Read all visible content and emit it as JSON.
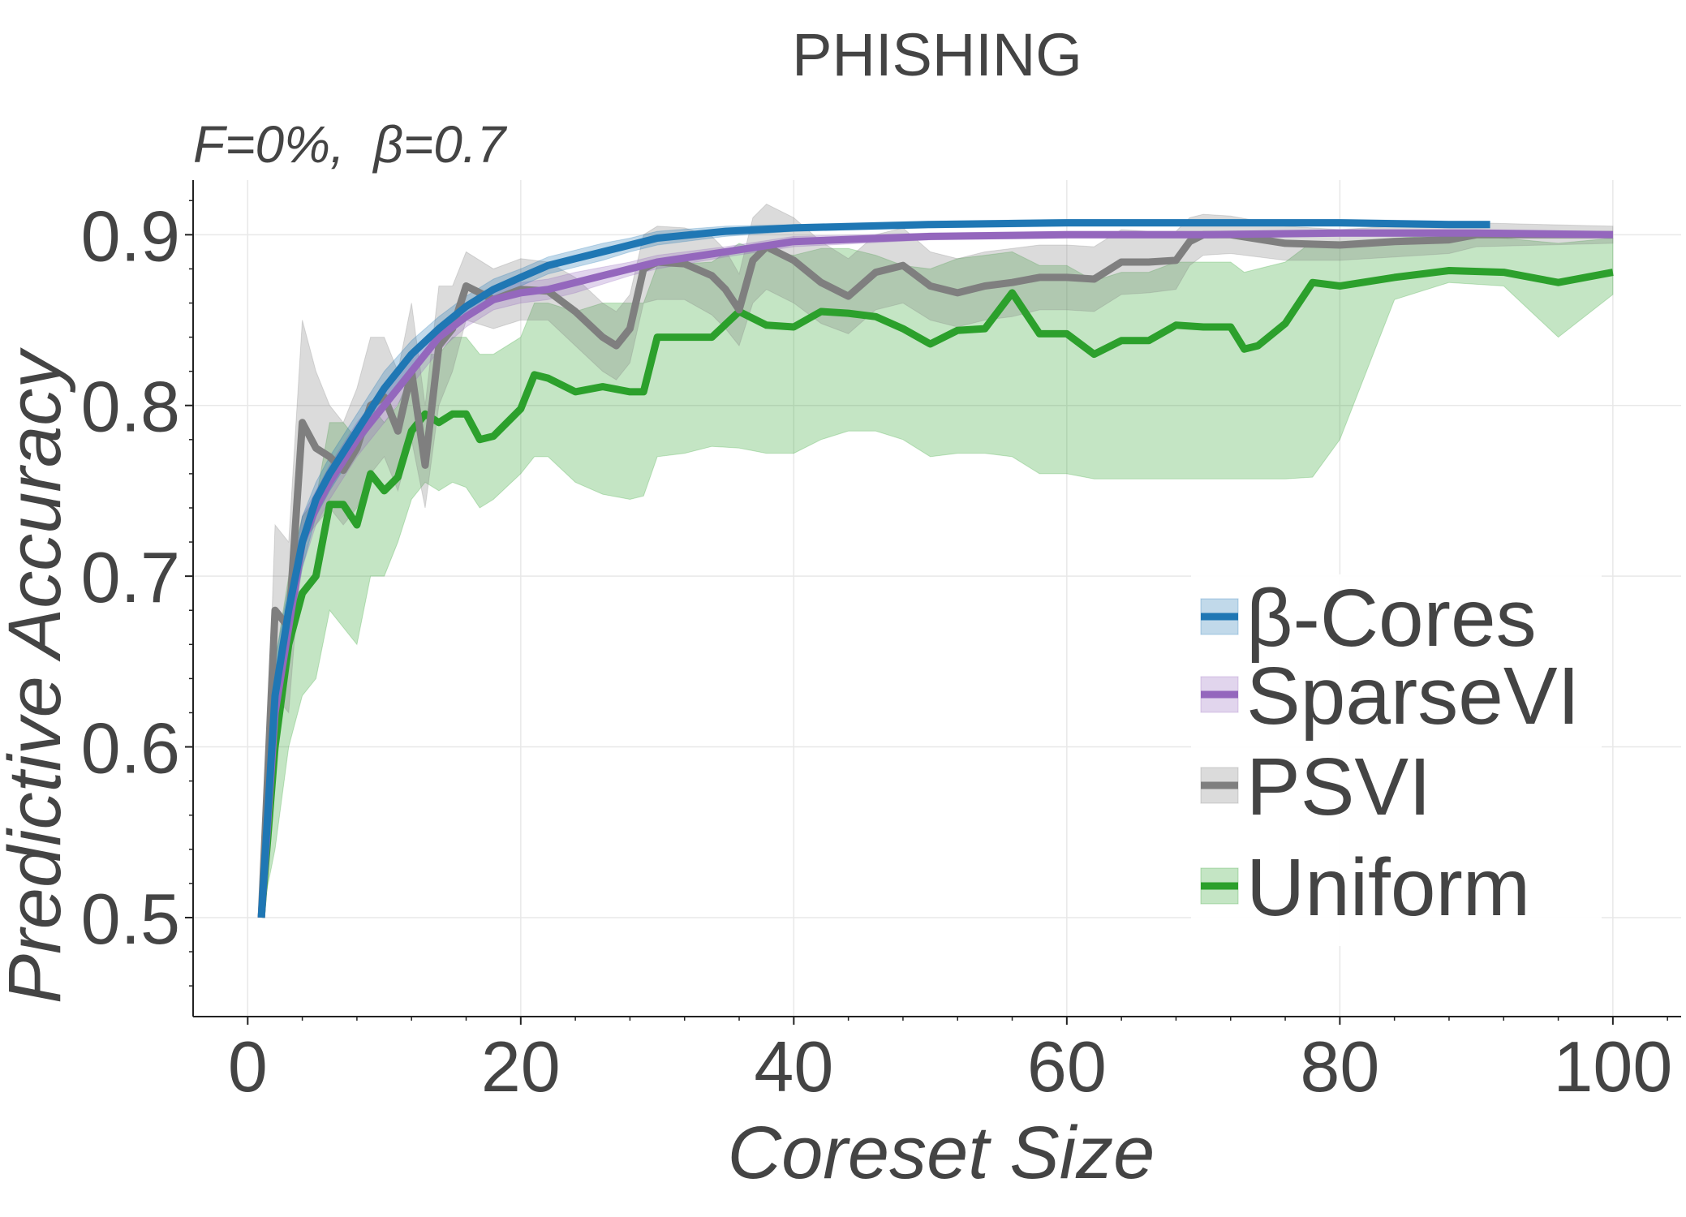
{
  "chart_data": {
    "type": "line",
    "title": "PHISHING",
    "subtitle": "F=0%,  β=0.7",
    "xlabel": "Coreset Size",
    "ylabel": "Predictive Accuracy",
    "xlim": [
      -4,
      105
    ],
    "ylim": [
      0.442,
      0.932
    ],
    "xticks": [
      0,
      20,
      40,
      60,
      80,
      100
    ],
    "yticks": [
      0.5,
      0.6,
      0.7,
      0.8,
      0.9
    ],
    "xtick_labels": [
      "0",
      "20",
      "40",
      "60",
      "80",
      "100"
    ],
    "ytick_labels": [
      "0.5",
      "0.6",
      "0.7",
      "0.8",
      "0.9"
    ],
    "grid": true,
    "legend_position": "lower-right",
    "series": [
      {
        "name": "β-Cores",
        "color": "#1f77b4",
        "x": [
          1,
          2,
          3,
          4,
          5,
          6,
          8,
          10,
          12,
          14,
          16,
          18,
          20,
          22,
          24,
          26,
          28,
          30,
          35,
          40,
          50,
          60,
          70,
          80,
          88,
          91
        ],
        "y": [
          0.5,
          0.63,
          0.68,
          0.72,
          0.745,
          0.76,
          0.785,
          0.81,
          0.83,
          0.845,
          0.858,
          0.868,
          0.875,
          0.882,
          0.886,
          0.89,
          0.894,
          0.898,
          0.902,
          0.904,
          0.906,
          0.907,
          0.907,
          0.907,
          0.906,
          0.906
        ],
        "lower": [
          0.5,
          0.61,
          0.665,
          0.705,
          0.735,
          0.75,
          0.775,
          0.8,
          0.822,
          0.838,
          0.852,
          0.862,
          0.87,
          0.877,
          0.881,
          0.885,
          0.89,
          0.894,
          0.899,
          0.902,
          0.904,
          0.905,
          0.905,
          0.905,
          0.904,
          0.904
        ],
        "upper": [
          0.5,
          0.65,
          0.695,
          0.735,
          0.755,
          0.77,
          0.795,
          0.82,
          0.838,
          0.852,
          0.864,
          0.874,
          0.88,
          0.887,
          0.891,
          0.895,
          0.898,
          0.902,
          0.905,
          0.906,
          0.908,
          0.909,
          0.909,
          0.909,
          0.908,
          0.908
        ]
      },
      {
        "name": "SparseVI",
        "color": "#9467bd",
        "x": [
          1,
          2,
          3,
          4,
          5,
          6,
          8,
          10,
          12,
          14,
          16,
          18,
          20,
          22,
          24,
          26,
          28,
          30,
          35,
          40,
          50,
          60,
          70,
          80,
          90,
          100
        ],
        "y": [
          0.5,
          0.62,
          0.67,
          0.72,
          0.74,
          0.755,
          0.78,
          0.8,
          0.82,
          0.84,
          0.852,
          0.862,
          0.866,
          0.868,
          0.872,
          0.876,
          0.88,
          0.884,
          0.89,
          0.896,
          0.899,
          0.9,
          0.9,
          0.901,
          0.901,
          0.9
        ],
        "lower": [
          0.5,
          0.6,
          0.655,
          0.705,
          0.73,
          0.745,
          0.77,
          0.79,
          0.812,
          0.832,
          0.846,
          0.856,
          0.86,
          0.862,
          0.866,
          0.871,
          0.876,
          0.88,
          0.887,
          0.893,
          0.897,
          0.898,
          0.898,
          0.899,
          0.899,
          0.898
        ],
        "upper": [
          0.5,
          0.64,
          0.685,
          0.735,
          0.75,
          0.765,
          0.79,
          0.81,
          0.828,
          0.846,
          0.858,
          0.868,
          0.872,
          0.874,
          0.878,
          0.881,
          0.884,
          0.888,
          0.893,
          0.899,
          0.901,
          0.902,
          0.902,
          0.903,
          0.903,
          0.902
        ]
      },
      {
        "name": "PSVI",
        "color": "#7f7f7f",
        "x": [
          1,
          2,
          3,
          4,
          5,
          6,
          7,
          8,
          9,
          10,
          11,
          12,
          13,
          14,
          15,
          16,
          18,
          20,
          22,
          24,
          26,
          27,
          28,
          29,
          30,
          32,
          34,
          35,
          36,
          37,
          38,
          40,
          42,
          44,
          46,
          48,
          50,
          52,
          54,
          56,
          58,
          60,
          62,
          64,
          66,
          68,
          69,
          70,
          72,
          76,
          80,
          84,
          88,
          90,
          95,
          100
        ],
        "y": [
          0.5,
          0.68,
          0.67,
          0.79,
          0.775,
          0.77,
          0.762,
          0.775,
          0.8,
          0.805,
          0.785,
          0.82,
          0.765,
          0.835,
          0.845,
          0.87,
          0.862,
          0.868,
          0.867,
          0.855,
          0.84,
          0.835,
          0.845,
          0.88,
          0.884,
          0.883,
          0.876,
          0.868,
          0.856,
          0.885,
          0.893,
          0.885,
          0.872,
          0.864,
          0.878,
          0.882,
          0.87,
          0.866,
          0.87,
          0.872,
          0.875,
          0.875,
          0.874,
          0.884,
          0.884,
          0.885,
          0.896,
          0.9,
          0.9,
          0.895,
          0.894,
          0.896,
          0.897,
          0.9,
          0.9,
          0.9
        ],
        "lower": [
          0.5,
          0.63,
          0.62,
          0.72,
          0.73,
          0.74,
          0.73,
          0.74,
          0.76,
          0.77,
          0.75,
          0.78,
          0.74,
          0.8,
          0.82,
          0.85,
          0.845,
          0.85,
          0.85,
          0.835,
          0.82,
          0.815,
          0.825,
          0.86,
          0.862,
          0.862,
          0.853,
          0.845,
          0.835,
          0.86,
          0.868,
          0.86,
          0.848,
          0.842,
          0.856,
          0.86,
          0.85,
          0.846,
          0.85,
          0.852,
          0.856,
          0.856,
          0.855,
          0.865,
          0.866,
          0.868,
          0.882,
          0.888,
          0.889,
          0.885,
          0.885,
          0.887,
          0.889,
          0.893,
          0.894,
          0.895
        ],
        "upper": [
          0.5,
          0.73,
          0.72,
          0.85,
          0.82,
          0.8,
          0.79,
          0.81,
          0.84,
          0.84,
          0.82,
          0.86,
          0.8,
          0.87,
          0.87,
          0.89,
          0.88,
          0.886,
          0.884,
          0.875,
          0.86,
          0.855,
          0.865,
          0.9,
          0.905,
          0.904,
          0.899,
          0.891,
          0.877,
          0.91,
          0.918,
          0.91,
          0.896,
          0.886,
          0.9,
          0.904,
          0.89,
          0.886,
          0.89,
          0.892,
          0.894,
          0.894,
          0.893,
          0.903,
          0.902,
          0.902,
          0.91,
          0.912,
          0.911,
          0.905,
          0.903,
          0.905,
          0.905,
          0.907,
          0.906,
          0.905
        ]
      },
      {
        "name": "Uniform",
        "color": "#2ca02c",
        "x": [
          1,
          2,
          3,
          4,
          5,
          6,
          7,
          8,
          9,
          10,
          11,
          12,
          13,
          14,
          15,
          16,
          17,
          18,
          20,
          21,
          22,
          24,
          26,
          28,
          29,
          30,
          32,
          34,
          36,
          38,
          40,
          42,
          44,
          46,
          48,
          50,
          52,
          54,
          56,
          58,
          60,
          62,
          64,
          66,
          68,
          70,
          72,
          73,
          74,
          76,
          78,
          80,
          84,
          88,
          92,
          96,
          100
        ],
        "y": [
          0.5,
          0.6,
          0.66,
          0.69,
          0.7,
          0.742,
          0.742,
          0.73,
          0.76,
          0.75,
          0.758,
          0.785,
          0.795,
          0.79,
          0.795,
          0.795,
          0.78,
          0.782,
          0.798,
          0.818,
          0.816,
          0.808,
          0.811,
          0.808,
          0.808,
          0.84,
          0.84,
          0.84,
          0.855,
          0.847,
          0.846,
          0.855,
          0.854,
          0.852,
          0.845,
          0.836,
          0.844,
          0.845,
          0.866,
          0.842,
          0.842,
          0.83,
          0.838,
          0.838,
          0.847,
          0.846,
          0.846,
          0.833,
          0.835,
          0.848,
          0.872,
          0.87,
          0.875,
          0.879,
          0.878,
          0.872,
          0.878
        ],
        "lower": [
          0.5,
          0.54,
          0.6,
          0.63,
          0.64,
          0.68,
          0.67,
          0.66,
          0.7,
          0.7,
          0.72,
          0.745,
          0.755,
          0.75,
          0.755,
          0.752,
          0.74,
          0.745,
          0.76,
          0.77,
          0.77,
          0.755,
          0.748,
          0.745,
          0.747,
          0.77,
          0.772,
          0.776,
          0.775,
          0.772,
          0.772,
          0.78,
          0.785,
          0.785,
          0.78,
          0.77,
          0.772,
          0.772,
          0.77,
          0.76,
          0.76,
          0.757,
          0.757,
          0.757,
          0.757,
          0.757,
          0.757,
          0.757,
          0.757,
          0.757,
          0.758,
          0.78,
          0.862,
          0.872,
          0.87,
          0.84,
          0.865
        ],
        "upper": [
          0.5,
          0.65,
          0.7,
          0.735,
          0.745,
          0.79,
          0.79,
          0.78,
          0.8,
          0.79,
          0.8,
          0.82,
          0.83,
          0.83,
          0.84,
          0.84,
          0.83,
          0.83,
          0.84,
          0.86,
          0.86,
          0.855,
          0.86,
          0.86,
          0.86,
          0.882,
          0.883,
          0.884,
          0.895,
          0.89,
          0.888,
          0.892,
          0.892,
          0.888,
          0.882,
          0.88,
          0.886,
          0.888,
          0.89,
          0.882,
          0.882,
          0.873,
          0.878,
          0.878,
          0.884,
          0.884,
          0.884,
          0.878,
          0.88,
          0.884,
          0.896,
          0.896,
          0.898,
          0.9,
          0.898,
          0.895,
          0.898
        ]
      }
    ]
  }
}
